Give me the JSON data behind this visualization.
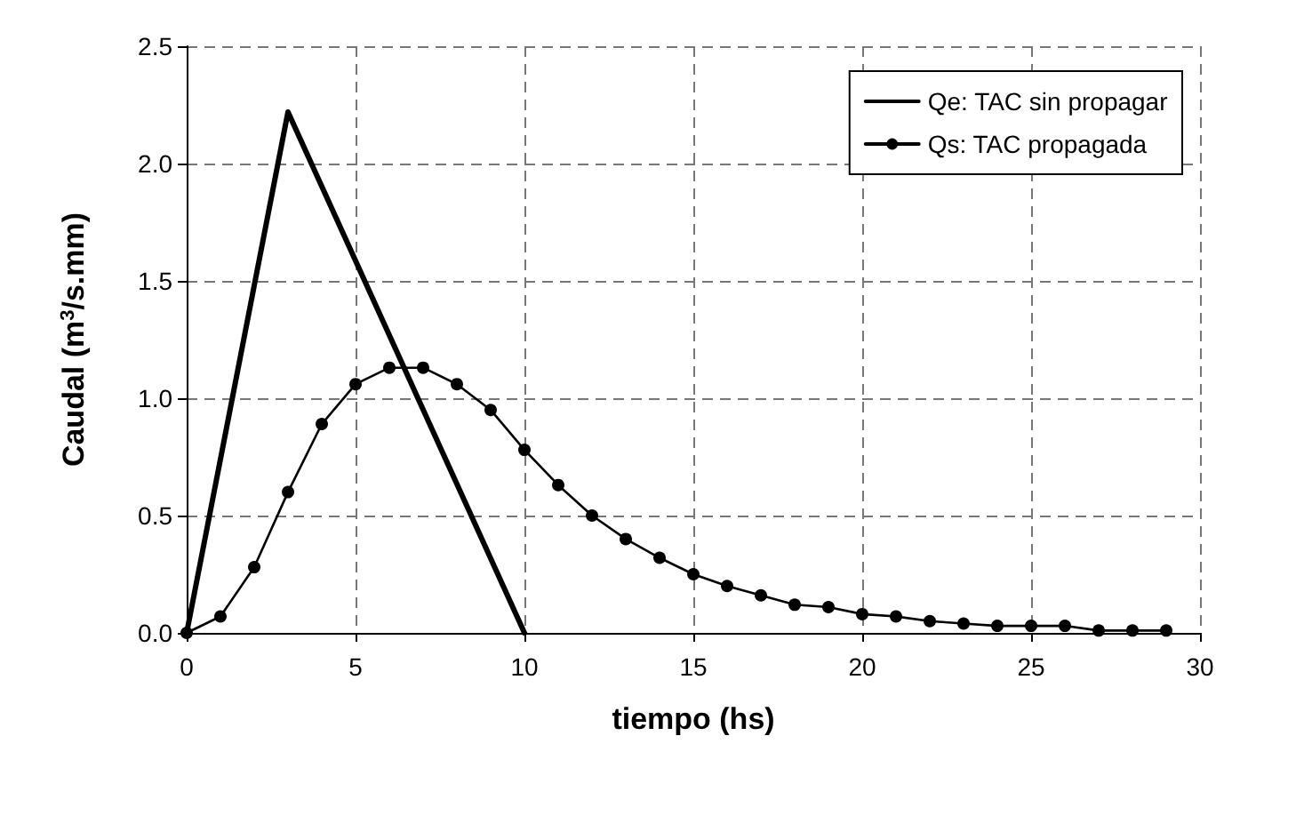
{
  "chart_data": {
    "type": "line",
    "xlabel": "tiempo (hs)",
    "ylabel": "Caudal (m$^{3}$/s.mm)",
    "xlim": [
      0,
      30
    ],
    "xticks": [
      0,
      5,
      10,
      15,
      20,
      25,
      30
    ],
    "ylim": [
      0,
      2.5
    ],
    "yticks": [
      {
        "value": 0,
        "label": "0.0"
      },
      0.5,
      {
        "value": 1,
        "label": "1.0"
      },
      1.5,
      {
        "value": 2,
        "label": "2.0"
      },
      2.5
    ],
    "grid": true,
    "legend": "top right",
    "line_style": "solid",
    "series": [
      {
        "name": "Qe: TAC sin propagar",
        "color": "#000000",
        "marker": "none",
        "x": [
          0,
          3,
          10
        ],
        "values": [
          0,
          2.22,
          0
        ]
      },
      {
        "name": "Qs: TAC propagada",
        "color": "#000000",
        "marker": "circle",
        "x": [
          0,
          1,
          2,
          3,
          4,
          5,
          6,
          7,
          8,
          9,
          10,
          11,
          12,
          13,
          14,
          15,
          16,
          17,
          18,
          19,
          20,
          21,
          22,
          23,
          24,
          25,
          26,
          27,
          28,
          29
        ],
        "values": [
          0,
          0.07,
          0.28,
          0.6,
          0.89,
          1.06,
          1.13,
          1.13,
          1.06,
          0.95,
          0.78,
          0.63,
          0.5,
          0.4,
          0.32,
          0.25,
          0.2,
          0.16,
          0.12,
          0.11,
          0.08,
          0.07,
          0.05,
          0.04,
          0.03,
          0.03,
          0.03,
          0.01,
          0.01,
          0.01
        ]
      }
    ]
  }
}
